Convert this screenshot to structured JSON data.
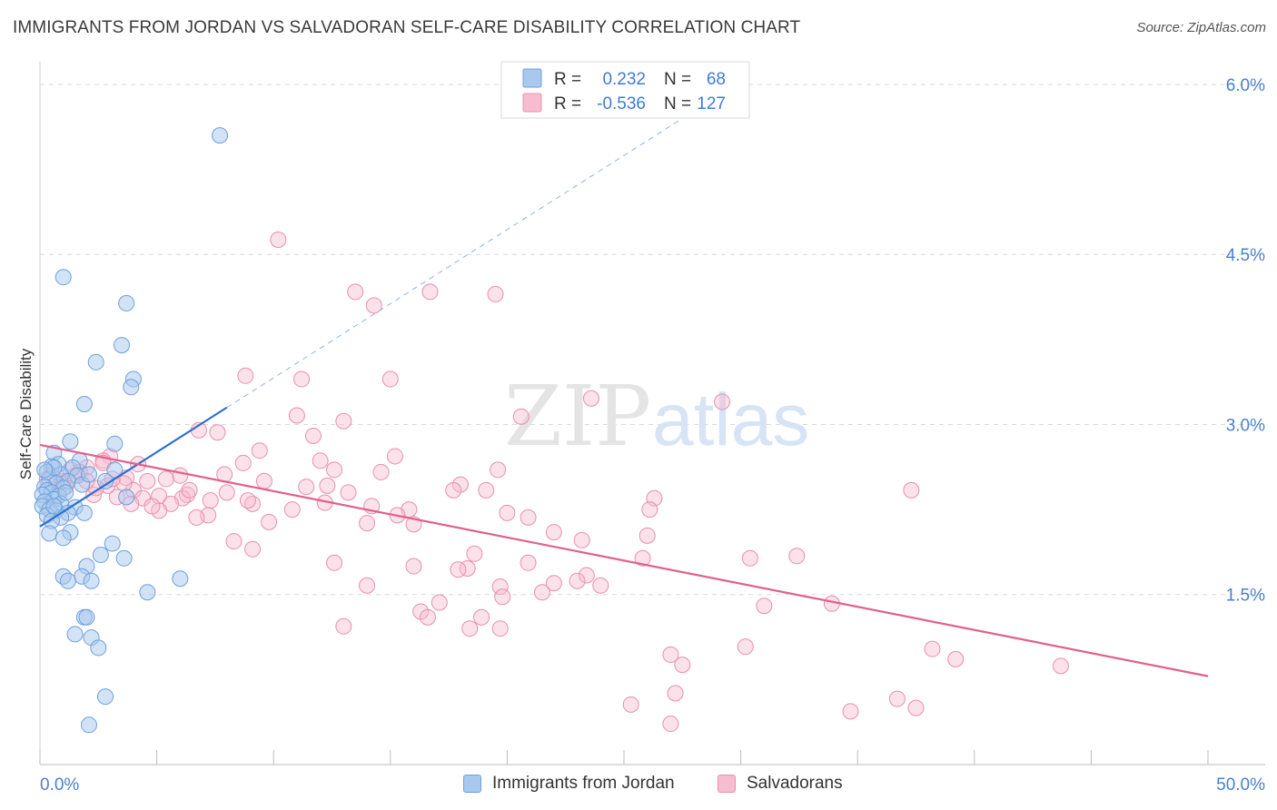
{
  "title": "IMMIGRANTS FROM JORDAN VS SALVADORAN SELF-CARE DISABILITY CORRELATION CHART",
  "source": "Source: ZipAtlas.com",
  "watermark": {
    "zip": "ZIP",
    "atlas": "atlas"
  },
  "stats_legend": {
    "rows": [
      {
        "r_label": "R =",
        "r_value": "0.232",
        "n_label": "N =",
        "n_value": "68"
      },
      {
        "r_label": "R =",
        "r_value": "-0.536",
        "n_label": "N =",
        "n_value": "127"
      }
    ]
  },
  "bottom_legend": [
    {
      "label": "Immigrants from Jordan"
    },
    {
      "label": "Salvadorans"
    }
  ],
  "colors": {
    "blue_fill": "#a8c8ee",
    "blue_stroke": "#6ea0dc",
    "blue_line": "#2f6fcc",
    "pink_fill": "#f6bdd0",
    "pink_stroke": "#e890ac",
    "pink_line": "#e0608c",
    "tick_text": "#4a7fcf",
    "grid": "#d9d9d9"
  },
  "chart_data": {
    "type": "scatter",
    "title": "IMMIGRANTS FROM JORDAN VS SALVADORAN SELF-CARE DISABILITY CORRELATION CHART",
    "xlabel": "",
    "ylabel": "Self-Care Disability",
    "xlim": [
      0,
      50
    ],
    "ylim": [
      0,
      6.2
    ],
    "x_tick_labels": [
      "0.0%",
      "50.0%"
    ],
    "y_ticks": [
      1.5,
      3.0,
      4.5,
      6.0
    ],
    "y_tick_labels": [
      "1.5%",
      "3.0%",
      "4.5%",
      "6.0%"
    ],
    "grid": true,
    "legend_position": "top-center",
    "series": [
      {
        "name": "Immigrants from Jordan",
        "r": 0.232,
        "n": 68,
        "trend": {
          "x0": 0.0,
          "y0": 2.1,
          "x1": 8.0,
          "y1": 3.15,
          "dashed_to_x": 27.5,
          "dashed_to_y": 5.7
        },
        "points": [
          [
            7.7,
            5.55
          ],
          [
            1.0,
            4.3
          ],
          [
            3.7,
            4.07
          ],
          [
            3.5,
            3.7
          ],
          [
            2.4,
            3.55
          ],
          [
            4.0,
            3.4
          ],
          [
            3.9,
            3.33
          ],
          [
            1.9,
            3.18
          ],
          [
            1.3,
            2.85
          ],
          [
            3.2,
            2.83
          ],
          [
            0.6,
            2.75
          ],
          [
            1.7,
            2.68
          ],
          [
            0.8,
            2.65
          ],
          [
            0.5,
            2.63
          ],
          [
            1.4,
            2.62
          ],
          [
            3.2,
            2.6
          ],
          [
            0.3,
            2.58
          ],
          [
            0.9,
            2.56
          ],
          [
            1.6,
            2.55
          ],
          [
            0.4,
            2.52
          ],
          [
            1.2,
            2.5
          ],
          [
            2.8,
            2.5
          ],
          [
            0.7,
            2.48
          ],
          [
            1.8,
            2.47
          ],
          [
            0.2,
            2.45
          ],
          [
            1.0,
            2.44
          ],
          [
            0.3,
            2.42
          ],
          [
            0.5,
            2.4
          ],
          [
            0.1,
            2.38
          ],
          [
            0.8,
            2.37
          ],
          [
            3.7,
            2.36
          ],
          [
            0.6,
            2.34
          ],
          [
            0.2,
            2.32
          ],
          [
            0.9,
            2.3
          ],
          [
            0.1,
            2.28
          ],
          [
            1.5,
            2.27
          ],
          [
            0.4,
            2.25
          ],
          [
            0.7,
            2.24
          ],
          [
            1.2,
            2.22
          ],
          [
            1.9,
            2.22
          ],
          [
            0.3,
            2.2
          ],
          [
            0.9,
            2.18
          ],
          [
            0.5,
            2.15
          ],
          [
            1.3,
            2.05
          ],
          [
            0.4,
            2.04
          ],
          [
            1.0,
            2.0
          ],
          [
            3.1,
            1.95
          ],
          [
            2.6,
            1.85
          ],
          [
            3.6,
            1.82
          ],
          [
            2.0,
            1.75
          ],
          [
            1.0,
            1.66
          ],
          [
            1.8,
            1.66
          ],
          [
            6.0,
            1.64
          ],
          [
            1.2,
            1.62
          ],
          [
            2.2,
            1.62
          ],
          [
            4.6,
            1.52
          ],
          [
            1.9,
            1.3
          ],
          [
            2.0,
            1.3
          ],
          [
            1.5,
            1.15
          ],
          [
            2.2,
            1.12
          ],
          [
            2.5,
            1.03
          ],
          [
            2.8,
            0.6
          ],
          [
            2.1,
            0.35
          ],
          [
            0.6,
            2.62
          ],
          [
            1.1,
            2.4
          ],
          [
            2.1,
            2.56
          ],
          [
            0.2,
            2.6
          ],
          [
            0.6,
            2.28
          ]
        ]
      },
      {
        "name": "Salvadorans",
        "r": -0.536,
        "n": 127,
        "trend": {
          "x0": 0.0,
          "y0": 2.82,
          "x1": 50.0,
          "y1": 0.78
        },
        "points": [
          [
            10.2,
            4.63
          ],
          [
            13.5,
            4.17
          ],
          [
            16.7,
            4.17
          ],
          [
            19.5,
            4.15
          ],
          [
            14.3,
            4.05
          ],
          [
            8.8,
            3.43
          ],
          [
            11.2,
            3.4
          ],
          [
            15.0,
            3.4
          ],
          [
            23.6,
            3.23
          ],
          [
            29.2,
            3.2
          ],
          [
            11.0,
            3.08
          ],
          [
            20.6,
            3.07
          ],
          [
            13.0,
            3.03
          ],
          [
            6.8,
            2.95
          ],
          [
            7.6,
            2.93
          ],
          [
            11.7,
            2.9
          ],
          [
            9.4,
            2.77
          ],
          [
            3.0,
            2.72
          ],
          [
            15.2,
            2.72
          ],
          [
            2.7,
            2.68
          ],
          [
            8.7,
            2.66
          ],
          [
            12.0,
            2.68
          ],
          [
            4.2,
            2.65
          ],
          [
            2.0,
            2.62
          ],
          [
            12.6,
            2.6
          ],
          [
            19.6,
            2.6
          ],
          [
            14.6,
            2.58
          ],
          [
            7.9,
            2.56
          ],
          [
            6.0,
            2.55
          ],
          [
            1.5,
            2.55
          ],
          [
            3.7,
            2.53
          ],
          [
            4.6,
            2.5
          ],
          [
            9.6,
            2.5
          ],
          [
            1.0,
            2.5
          ],
          [
            18.0,
            2.47
          ],
          [
            2.9,
            2.46
          ],
          [
            11.4,
            2.45
          ],
          [
            12.3,
            2.46
          ],
          [
            4.0,
            2.42
          ],
          [
            17.7,
            2.42
          ],
          [
            19.1,
            2.42
          ],
          [
            13.2,
            2.4
          ],
          [
            8.0,
            2.4
          ],
          [
            6.3,
            2.38
          ],
          [
            5.1,
            2.37
          ],
          [
            2.3,
            2.38
          ],
          [
            6.1,
            2.35
          ],
          [
            4.4,
            2.35
          ],
          [
            7.3,
            2.33
          ],
          [
            26.3,
            2.35
          ],
          [
            37.3,
            2.42
          ],
          [
            12.2,
            2.31
          ],
          [
            9.1,
            2.3
          ],
          [
            3.9,
            2.3
          ],
          [
            5.6,
            2.3
          ],
          [
            14.2,
            2.28
          ],
          [
            15.8,
            2.25
          ],
          [
            10.8,
            2.25
          ],
          [
            5.1,
            2.24
          ],
          [
            26.1,
            2.25
          ],
          [
            20.0,
            2.22
          ],
          [
            15.3,
            2.2
          ],
          [
            7.2,
            2.2
          ],
          [
            6.7,
            2.18
          ],
          [
            9.8,
            2.14
          ],
          [
            20.9,
            2.18
          ],
          [
            14.0,
            2.13
          ],
          [
            16.0,
            2.12
          ],
          [
            22.0,
            2.05
          ],
          [
            26.0,
            2.02
          ],
          [
            23.2,
            1.98
          ],
          [
            8.3,
            1.97
          ],
          [
            9.1,
            1.9
          ],
          [
            18.6,
            1.86
          ],
          [
            25.8,
            1.82
          ],
          [
            30.4,
            1.82
          ],
          [
            32.4,
            1.84
          ],
          [
            12.6,
            1.78
          ],
          [
            20.9,
            1.78
          ],
          [
            16.0,
            1.75
          ],
          [
            18.3,
            1.73
          ],
          [
            17.9,
            1.72
          ],
          [
            23.4,
            1.67
          ],
          [
            23.0,
            1.62
          ],
          [
            14.0,
            1.58
          ],
          [
            19.7,
            1.57
          ],
          [
            24.0,
            1.58
          ],
          [
            22.0,
            1.6
          ],
          [
            21.5,
            1.52
          ],
          [
            19.8,
            1.48
          ],
          [
            17.1,
            1.43
          ],
          [
            16.3,
            1.35
          ],
          [
            16.6,
            1.3
          ],
          [
            18.9,
            1.3
          ],
          [
            31.0,
            1.4
          ],
          [
            33.9,
            1.42
          ],
          [
            13.0,
            1.22
          ],
          [
            18.4,
            1.2
          ],
          [
            19.7,
            1.2
          ],
          [
            30.2,
            1.04
          ],
          [
            38.2,
            1.02
          ],
          [
            39.2,
            0.93
          ],
          [
            27.0,
            0.97
          ],
          [
            27.5,
            0.88
          ],
          [
            43.7,
            0.87
          ],
          [
            25.3,
            0.53
          ],
          [
            27.2,
            0.63
          ],
          [
            34.7,
            0.47
          ],
          [
            36.7,
            0.58
          ],
          [
            37.5,
            0.5
          ],
          [
            27.0,
            0.36
          ],
          [
            3.6,
            2.48
          ],
          [
            1.7,
            2.58
          ],
          [
            5.4,
            2.52
          ],
          [
            2.4,
            2.44
          ],
          [
            0.5,
            2.55
          ],
          [
            0.9,
            2.48
          ],
          [
            1.3,
            2.6
          ],
          [
            2.7,
            2.66
          ],
          [
            6.4,
            2.42
          ],
          [
            4.8,
            2.28
          ],
          [
            3.3,
            2.36
          ],
          [
            8.9,
            2.33
          ],
          [
            0.3,
            2.52
          ],
          [
            3.1,
            2.52
          ],
          [
            2.0,
            2.5
          ],
          [
            1.1,
            2.45
          ]
        ]
      }
    ]
  }
}
